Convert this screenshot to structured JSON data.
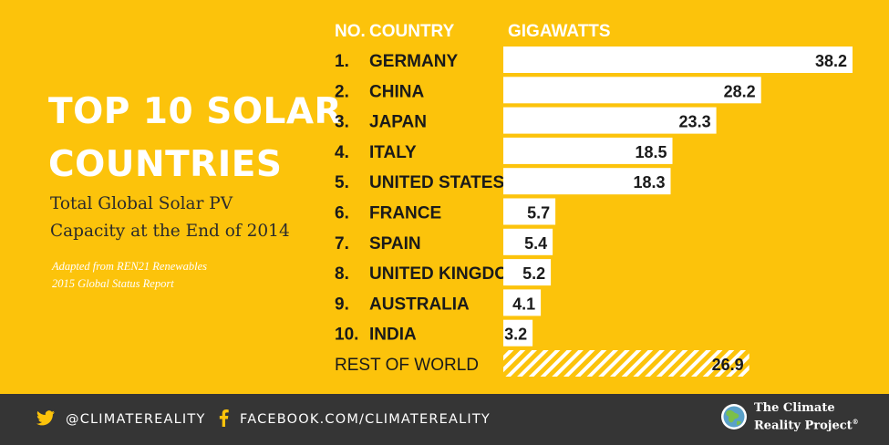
{
  "title_lines": [
    "TOP 10 SOLAR",
    "COUNTRIES"
  ],
  "subtitle_lines": [
    "Total Global Solar PV",
    "Capacity at the End of 2014"
  ],
  "source_lines": [
    "Adapted from REN21 Renewables",
    "2015 Global Status Report"
  ],
  "chart_data": {
    "type": "bar",
    "orientation": "horizontal",
    "columns": [
      "NO.",
      "COUNTRY",
      "GIGAWATTS"
    ],
    "ranks": [
      "1.",
      "2.",
      "3.",
      "4.",
      "5.",
      "6.",
      "7.",
      "8.",
      "9.",
      "10."
    ],
    "categories": [
      "GERMANY",
      "CHINA",
      "JAPAN",
      "ITALY",
      "UNITED STATES",
      "FRANCE",
      "SPAIN",
      "UNITED KINGDOM",
      "AUSTRALIA",
      "INDIA"
    ],
    "values": [
      38.2,
      28.2,
      23.3,
      18.5,
      18.3,
      5.7,
      5.4,
      5.2,
      4.1,
      3.2
    ],
    "rest": {
      "label": "REST OF WORLD",
      "value": 26.9,
      "fill": "hatched"
    },
    "bar_color": "#ffffff",
    "background_color": "#fcc30b",
    "value_labels": true,
    "grid": false
  },
  "footer": {
    "twitter_icon": "twitter-bird-icon",
    "twitter_handle": "@CLIMATEREALITY",
    "facebook_icon": "facebook-f-icon",
    "facebook_url": "FACEBOOK.COM/CLIMATEREALITY",
    "logo_icon": "globe-icon",
    "logo_lines": [
      "The Climate",
      "Reality Project"
    ],
    "logo_mark": "®"
  }
}
